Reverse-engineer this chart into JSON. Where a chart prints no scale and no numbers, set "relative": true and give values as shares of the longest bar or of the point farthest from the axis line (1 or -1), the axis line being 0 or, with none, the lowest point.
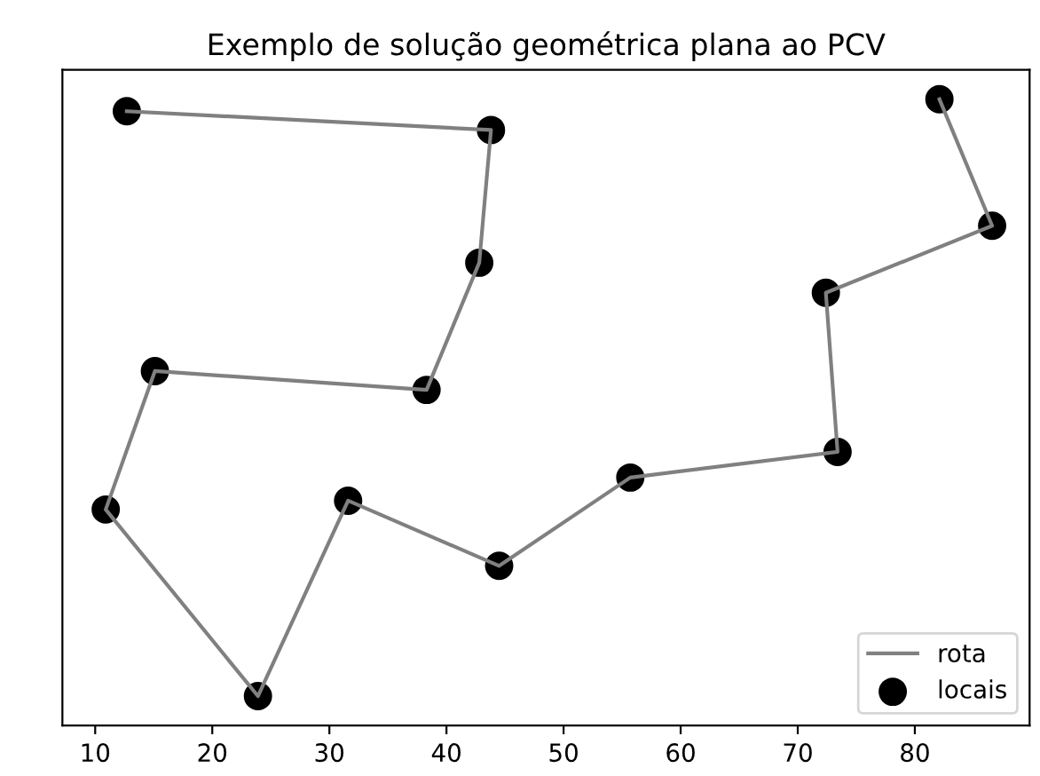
{
  "chart_data": {
    "type": "line",
    "title": "Exemplo de solução geométrica plana ao PCV",
    "relative": true,
    "tick_labels": "x",
    "xlim": [
      7.2,
      89.8
    ],
    "xticks": [
      10,
      20,
      30,
      40,
      50,
      60,
      70,
      80
    ],
    "legend": "bottom right",
    "series": [
      {
        "name": "rota",
        "color": "#808080",
        "line_style": "solid",
        "x": [
          12.7,
          43.8,
          42.8,
          38.3,
          15.1,
          10.9,
          23.9,
          31.6,
          44.5,
          55.7,
          73.4,
          72.4,
          86.6,
          82.1
        ],
        "values": [
          0.981,
          0.951,
          0.739,
          0.536,
          0.566,
          0.345,
          0.047,
          0.359,
          0.255,
          0.396,
          0.437,
          0.691,
          0.798,
          1
        ]
      },
      {
        "name": "locais",
        "type": "scatter",
        "color": "#000000",
        "marker": "circle",
        "x": [
          12.7,
          43.8,
          42.8,
          38.3,
          15.1,
          10.9,
          23.9,
          31.6,
          44.5,
          55.7,
          73.4,
          72.4,
          86.6,
          82.1
        ],
        "values": [
          0.981,
          0.951,
          0.739,
          0.536,
          0.566,
          0.345,
          0.047,
          0.359,
          0.255,
          0.396,
          0.437,
          0.691,
          0.798,
          1
        ]
      }
    ]
  }
}
